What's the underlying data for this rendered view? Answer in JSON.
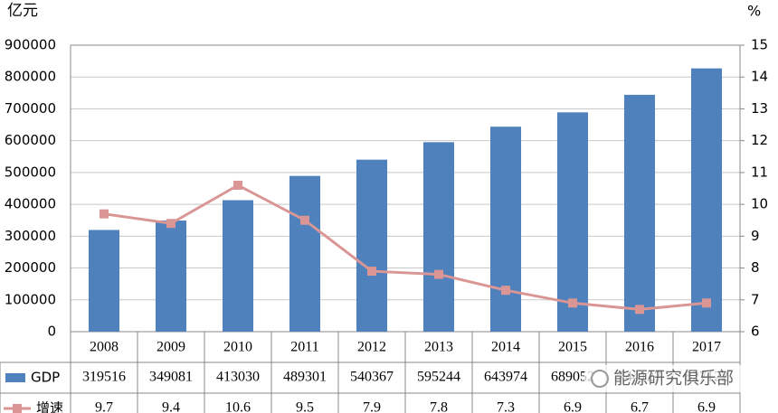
{
  "chart_data": {
    "type": "bar-line",
    "y_label": "亿元",
    "y2_label": "%",
    "categories": [
      "2008",
      "2009",
      "2010",
      "2011",
      "2012",
      "2013",
      "2014",
      "2015",
      "2016",
      "2017"
    ],
    "series": [
      {
        "name": "GDP",
        "type": "bar",
        "color": "#4f81bd",
        "values": [
          319516,
          349081,
          413030,
          489301,
          540367,
          595244,
          643974,
          689052,
          744127,
          827122
        ]
      },
      {
        "name": "增速",
        "type": "line",
        "axis": "y2",
        "color": "#d99694",
        "values": [
          9.7,
          9.4,
          10.6,
          9.5,
          7.9,
          7.8,
          7.3,
          6.9,
          6.7,
          6.9
        ]
      }
    ],
    "ylim": [
      0,
      900000
    ],
    "yticks": [
      0,
      100000,
      200000,
      300000,
      400000,
      500000,
      600000,
      700000,
      800000,
      900000
    ],
    "y2lim": [
      6,
      15
    ],
    "y2ticks": [
      6,
      7,
      8,
      9,
      10,
      11,
      12,
      13,
      14,
      15
    ],
    "grid": true,
    "watermark": "能源研究俱乐部"
  }
}
